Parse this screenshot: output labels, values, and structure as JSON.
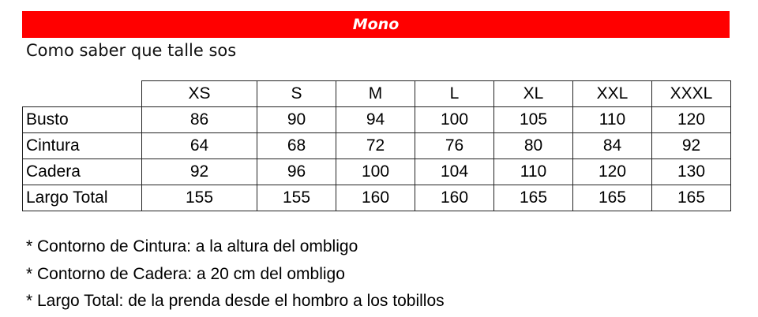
{
  "header": {
    "title": "Mono",
    "subtitle": "Como saber que talle sos",
    "accent_color": "#ff0000"
  },
  "table": {
    "columns": [
      "XS",
      "S",
      "M",
      "L",
      "XL",
      "XXL",
      "XXXL"
    ],
    "rows": [
      {
        "label": "Busto",
        "values": [
          "86",
          "90",
          "94",
          "100",
          "105",
          "110",
          "120"
        ]
      },
      {
        "label": "Cintura",
        "values": [
          "64",
          "68",
          "72",
          "76",
          "80",
          "84",
          "92"
        ]
      },
      {
        "label": "Cadera",
        "values": [
          "92",
          "96",
          "100",
          "104",
          "110",
          "120",
          "130"
        ]
      },
      {
        "label": "Largo Total",
        "values": [
          "155",
          "155",
          "160",
          "160",
          "165",
          "165",
          "165"
        ]
      }
    ]
  },
  "notes": [
    "* Contorno de Cintura: a la altura del ombligo",
    "* Contorno de Cadera: a 20 cm del ombligo",
    "* Largo Total: de la prenda desde el hombro a los tobillos"
  ]
}
